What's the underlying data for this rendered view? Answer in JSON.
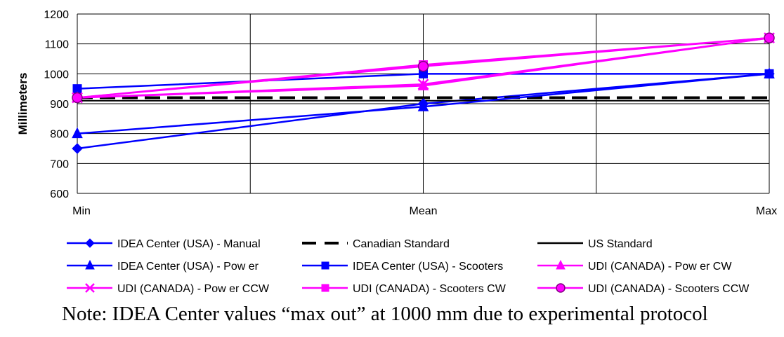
{
  "chart_data": {
    "type": "line",
    "ylabel": "Millimeters",
    "ylim": [
      600,
      1200
    ],
    "yticks": [
      "600",
      "700",
      "800",
      "900",
      "1000",
      "1100",
      "1200"
    ],
    "categories": [
      "Min",
      "Mean",
      "Max"
    ],
    "grid": true,
    "legend_position": "bottom",
    "series": [
      {
        "name": "IDEA Center (USA) - Manual",
        "values": [
          750,
          900,
          1000
        ],
        "color": "#0000ff",
        "marker": "diamond",
        "dash": "solid"
      },
      {
        "name": "Canadian Standard",
        "values": [
          920,
          920,
          920
        ],
        "color": "#000000",
        "marker": "none",
        "dash": "dashed"
      },
      {
        "name": "US Standard",
        "values": [
          910,
          910,
          910
        ],
        "color": "#000000",
        "marker": "none",
        "dash": "solid"
      },
      {
        "name": "IDEA Center (USA) - Pow er",
        "values": [
          800,
          890,
          1000
        ],
        "color": "#0000ff",
        "marker": "triangle",
        "dash": "solid"
      },
      {
        "name": "IDEA Center (USA) - Scooters",
        "values": [
          950,
          1000,
          1000
        ],
        "color": "#0000ff",
        "marker": "square",
        "dash": "solid"
      },
      {
        "name": "UDI (CANADA) - Pow er CW",
        "values": [
          920,
          960,
          1120
        ],
        "color": "#ff00ff",
        "marker": "triangle",
        "dash": "solid"
      },
      {
        "name": "UDI (CANADA) - Pow er CCW",
        "values": [
          920,
          965,
          1120
        ],
        "color": "#ff00ff",
        "marker": "x",
        "dash": "solid"
      },
      {
        "name": "UDI (CANADA) - Scooters CW",
        "values": [
          920,
          1030,
          1120
        ],
        "color": "#ff00ff",
        "marker": "square",
        "dash": "solid"
      },
      {
        "name": "UDI (CANADA) - Scooters CCW",
        "values": [
          920,
          1025,
          1120
        ],
        "color": "#ff00ff",
        "marker": "circle",
        "dash": "solid"
      }
    ]
  },
  "note": "Note: IDEA Center values “max out” at 1000 mm due to experimental protocol"
}
